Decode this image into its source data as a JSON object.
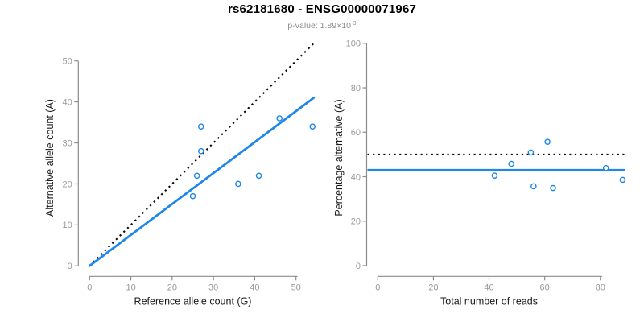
{
  "header": {
    "title": "rs62181680 - ENSG00000071967",
    "subtitle_base": "p-value: 1.89×10",
    "subtitle_exponent": "-3"
  },
  "colors": {
    "accent_blue": "#1E87E8",
    "dotted_black": "#0a0a0a",
    "axis_gray": "#8C8C8C",
    "tick_label_gray": "#999999",
    "axis_title_color": "#1A1A1A",
    "title_color": "#000000",
    "subtitle_gray": "#8C8C8C",
    "background": "#FFFFFF"
  },
  "chart_data": [
    {
      "id": "allele-counts",
      "type": "scatter",
      "xlabel": "Reference allele count (G)",
      "ylabel": "Alternative allele count (A)",
      "xticks": [
        0,
        10,
        20,
        30,
        40,
        50
      ],
      "yticks": [
        0,
        10,
        20,
        30,
        40,
        50
      ],
      "xlim": [
        0,
        54.8
      ],
      "ylim": [
        0,
        55.2
      ],
      "grid": false,
      "points": [
        {
          "x": 25,
          "y": 17
        },
        {
          "x": 26,
          "y": 22
        },
        {
          "x": 27,
          "y": 28
        },
        {
          "x": 27,
          "y": 34
        },
        {
          "x": 36,
          "y": 20
        },
        {
          "x": 41,
          "y": 22
        },
        {
          "x": 46,
          "y": 36
        },
        {
          "x": 54,
          "y": 34
        }
      ],
      "identity_line": {
        "style": "dotted",
        "slope": 1,
        "intercept": 0
      },
      "fit_line": {
        "style": "solid",
        "slope": 0.755,
        "intercept": 0
      }
    },
    {
      "id": "percentage-alternative",
      "type": "scatter",
      "xlabel": "Total number of reads",
      "ylabel": "Percentage alternative (A)",
      "xticks": [
        0,
        20,
        40,
        60,
        80
      ],
      "yticks": [
        0,
        20,
        40,
        60,
        80,
        100
      ],
      "xlim": [
        -3.7,
        92
      ],
      "ylim": [
        0,
        100
      ],
      "grid": false,
      "points": [
        {
          "x": 42,
          "y": 40.5
        },
        {
          "x": 48,
          "y": 45.8
        },
        {
          "x": 55,
          "y": 50.9
        },
        {
          "x": 56,
          "y": 35.7
        },
        {
          "x": 61,
          "y": 55.7
        },
        {
          "x": 63,
          "y": 34.9
        },
        {
          "x": 82,
          "y": 43.9
        },
        {
          "x": 88,
          "y": 38.6
        }
      ],
      "null_line": {
        "style": "dotted",
        "y": 50
      },
      "fit_line": {
        "style": "solid",
        "y": 43
      }
    }
  ]
}
